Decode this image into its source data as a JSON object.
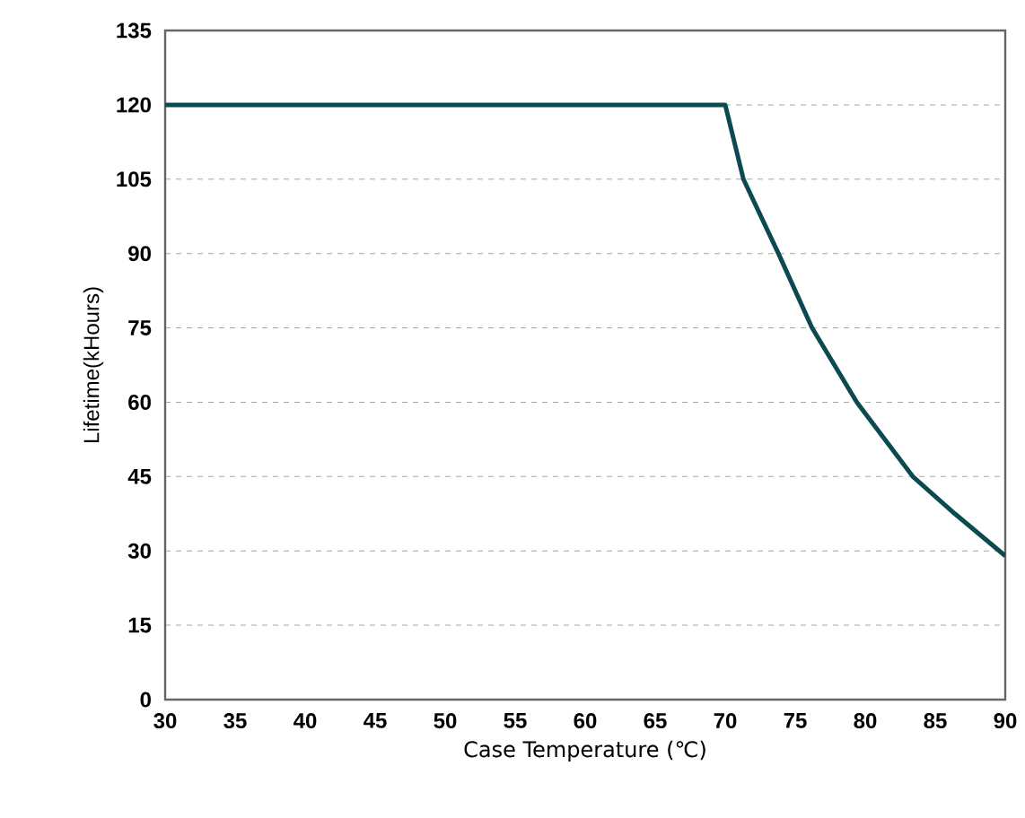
{
  "chart_data": {
    "type": "line",
    "xlabel": "Case Temperature (℃)",
    "ylabel": "Lifetime(kHours)",
    "x": [
      30,
      70,
      71.3,
      73.8,
      76.2,
      79.4,
      83.4,
      86.4,
      90
    ],
    "series": [
      {
        "color": "#0b4a50",
        "values": [
          120,
          120,
          105,
          90,
          75,
          60,
          45,
          37.5,
          29
        ]
      }
    ],
    "xlim": [
      30,
      90
    ],
    "xticks": [
      30,
      35,
      40,
      45,
      50,
      55,
      60,
      65,
      70,
      75,
      80,
      85,
      90
    ],
    "ylim": [
      0,
      135
    ],
    "yticks": [
      0,
      15,
      30,
      45,
      60,
      75,
      90,
      105,
      120,
      135
    ],
    "grid": "y",
    "marker": "none",
    "line_style": "solid"
  }
}
